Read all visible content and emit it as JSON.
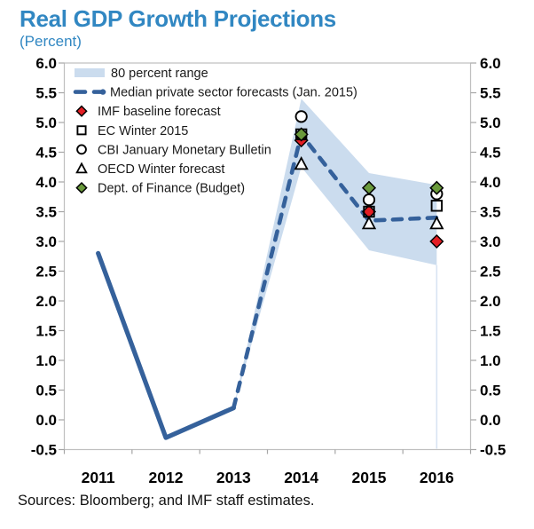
{
  "header": {
    "title": "Real GDP Growth Projections",
    "subtitle": "(Percent)"
  },
  "footer": {
    "sources": "Sources: Bloomberg; and IMF staff estimates."
  },
  "colors": {
    "title_blue": "#3187C2",
    "line_blue": "#35619B",
    "band_blue": "#CBDCEE",
    "red": "#E31E24",
    "green": "#6A9A3C",
    "marker_stroke": "#000000",
    "axis_text": "#000000",
    "legend_text": "#1A1A1A",
    "tick": "#A6A6A6",
    "border": "#BFBFBF"
  },
  "chart_data": {
    "type": "line",
    "title": "Real GDP Growth Projections",
    "subtitle": "(Percent)",
    "categories": [
      "2011",
      "2012",
      "2013",
      "2014",
      "2015",
      "2016"
    ],
    "ylim": [
      -0.5,
      6.0
    ],
    "ytick_step": 0.5,
    "ytick_labels": [
      "6.0",
      "5.5",
      "5.0",
      "4.5",
      "4.0",
      "3.5",
      "3.0",
      "2.5",
      "2.0",
      "1.5",
      "1.0",
      "0.5",
      "0.0",
      "-0.5"
    ],
    "grid": false,
    "legend_position": "top-left-inside",
    "series": [
      {
        "name": "80 percent range",
        "type": "band",
        "upper": [
          null,
          null,
          0.2,
          5.4,
          4.15,
          3.95
        ],
        "lower": [
          null,
          null,
          0.2,
          4.25,
          2.85,
          2.6
        ]
      },
      {
        "name": "Real GDP growth (actual)",
        "type": "line-solid",
        "values": [
          2.8,
          -0.3,
          0.2,
          null,
          null,
          null
        ]
      },
      {
        "name": "Median private sector forecasts (Jan. 2015)",
        "type": "line-dashed",
        "values": [
          null,
          null,
          0.2,
          4.8,
          3.35,
          3.4
        ]
      },
      {
        "name": "IMF baseline forecast",
        "type": "scatter",
        "marker": "diamond-red",
        "values": [
          null,
          null,
          null,
          4.7,
          3.5,
          3.0
        ]
      },
      {
        "name": "EC Winter 2015",
        "type": "scatter",
        "marker": "square",
        "values": [
          null,
          null,
          null,
          4.8,
          3.5,
          3.6
        ]
      },
      {
        "name": "CBI January Monetary Bulletin",
        "type": "scatter",
        "marker": "circle",
        "values": [
          null,
          null,
          null,
          5.1,
          3.7,
          3.8
        ]
      },
      {
        "name": "OECD Winter forecast",
        "type": "scatter",
        "marker": "triangle",
        "values": [
          null,
          null,
          null,
          4.3,
          3.3,
          3.3
        ]
      },
      {
        "name": "Dept. of Finance (Budget)",
        "type": "scatter",
        "marker": "diamond-green",
        "values": [
          null,
          null,
          null,
          4.8,
          3.9,
          3.9
        ]
      }
    ],
    "legend": [
      {
        "label": "80 percent range",
        "marker": "band-swatch"
      },
      {
        "label": "Median private sector forecasts (Jan. 2015)",
        "marker": "dashed-line"
      },
      {
        "label": "IMF baseline forecast",
        "marker": "diamond-red"
      },
      {
        "label": "EC Winter 2015",
        "marker": "square"
      },
      {
        "label": "CBI January Monetary Bulletin",
        "marker": "circle"
      },
      {
        "label": "OECD Winter forecast",
        "marker": "triangle"
      },
      {
        "label": "Dept. of Finance (Budget)",
        "marker": "diamond-green"
      }
    ]
  }
}
